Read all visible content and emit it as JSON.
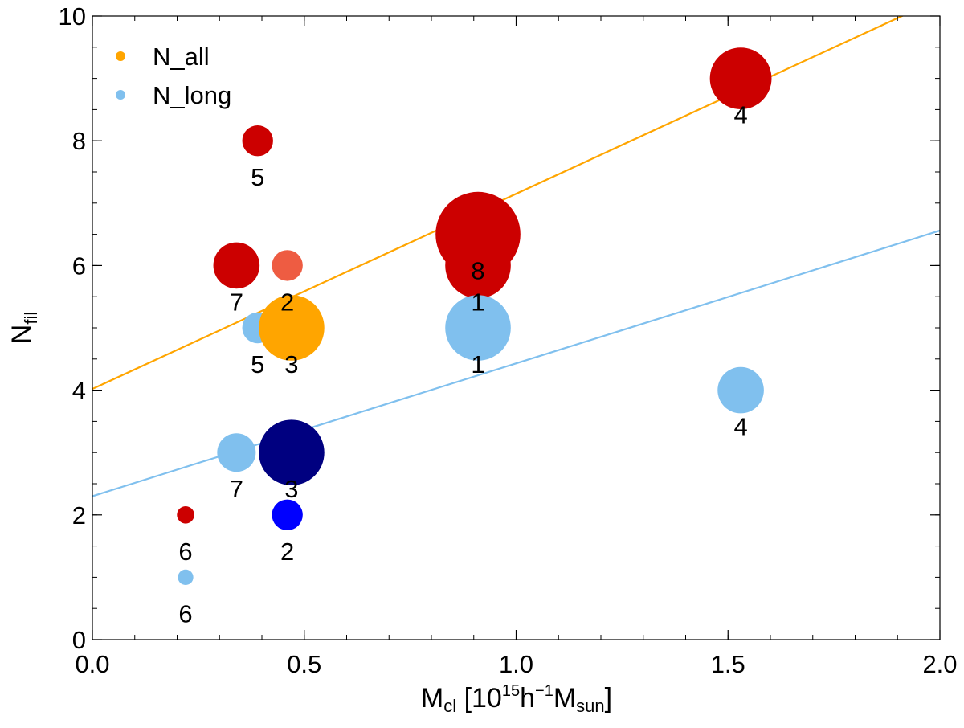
{
  "chart_data": {
    "type": "scatter",
    "xlabel": {
      "base": "M",
      "sub": "cl",
      "pre": " [10",
      "sup1": "15",
      "mid": "h",
      "sup2": "−1",
      "post": "M",
      "sub2": "sun",
      "close": "]"
    },
    "ylabel": {
      "base": "N",
      "sub": "fil"
    },
    "xlim": [
      0.0,
      2.0
    ],
    "ylim": [
      0,
      10
    ],
    "xticks": [
      0.0,
      0.5,
      1.0,
      1.5,
      2.0
    ],
    "xtick_labels": [
      "0.0",
      "0.5",
      "1.0",
      "1.5",
      "2.0"
    ],
    "yticks": [
      0,
      2,
      4,
      6,
      8,
      10
    ],
    "ytick_labels": [
      "0",
      "2",
      "4",
      "6",
      "8",
      "10"
    ],
    "legend": {
      "placement": "top-left",
      "entries": [
        {
          "label": "N_all",
          "color": "#FFA500"
        },
        {
          "label": "N_long",
          "color": "#80C0EE"
        }
      ]
    },
    "fit_lines": [
      {
        "name": "N_all fit",
        "color": "#FFA500",
        "intercept": 4.02,
        "slope": 3.13
      },
      {
        "name": "N_long fit",
        "color": "#80C0EE",
        "intercept": 2.3,
        "slope": 2.13
      }
    ],
    "points": [
      {
        "x": 0.39,
        "y": 8,
        "label": "5",
        "color": "#CC0000",
        "size": 0.8,
        "series": "N_all"
      },
      {
        "x": 0.34,
        "y": 6,
        "label": "7",
        "color": "#CC0000",
        "size": 1.2,
        "series": "N_all"
      },
      {
        "x": 0.46,
        "y": 6,
        "label": "2",
        "color": "#EE5C42",
        "size": 0.8,
        "series": "N_all"
      },
      {
        "x": 0.91,
        "y": 6.5,
        "label": "8",
        "color": "#CC0000",
        "size": 2.2,
        "series": "N_all"
      },
      {
        "x": 0.91,
        "y": 6,
        "label": "1",
        "color": "#CC0000",
        "size": 1.7,
        "series": "N_all"
      },
      {
        "x": 1.53,
        "y": 9,
        "label": "4",
        "color": "#CC0000",
        "size": 1.6,
        "series": "N_all"
      },
      {
        "x": 0.39,
        "y": 5,
        "label": "5",
        "color": "#80C0EE",
        "size": 0.8,
        "series": "N_long"
      },
      {
        "x": 0.47,
        "y": 5,
        "label": "3",
        "color": "#FFA500",
        "size": 1.7,
        "series": "N_all"
      },
      {
        "x": 0.91,
        "y": 5,
        "label": "1",
        "color": "#80C0EE",
        "size": 1.7,
        "series": "N_long"
      },
      {
        "x": 1.53,
        "y": 4,
        "label": "4",
        "color": "#80C0EE",
        "size": 1.2,
        "series": "N_long"
      },
      {
        "x": 0.34,
        "y": 3,
        "label": "7",
        "color": "#80C0EE",
        "size": 1.0,
        "series": "N_long"
      },
      {
        "x": 0.47,
        "y": 3,
        "label": "3",
        "color": "#000080",
        "size": 1.7,
        "series": "N_long"
      },
      {
        "x": 0.46,
        "y": 2,
        "label": "2",
        "color": "#0000FF",
        "size": 0.8,
        "series": "N_long"
      },
      {
        "x": 0.22,
        "y": 2,
        "label": "6",
        "color": "#CC0000",
        "size": 0.45,
        "series": "N_all"
      },
      {
        "x": 0.22,
        "y": 1,
        "label": "6",
        "color": "#80C0EE",
        "size": 0.4,
        "series": "N_long"
      }
    ]
  }
}
